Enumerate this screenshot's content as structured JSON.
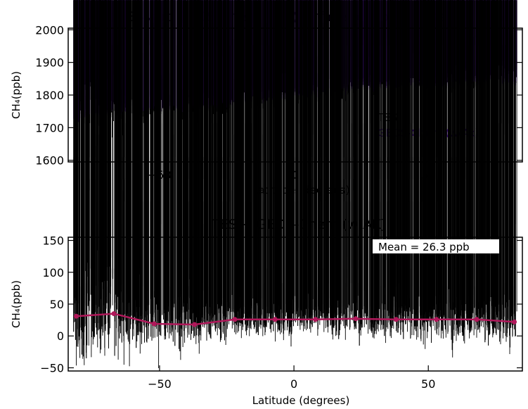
{
  "chart_data": [
    {
      "type": "scatter",
      "title": "TES and GEOS-Chem CH₄ (surface to Tropopause)",
      "xlabel": "Latitude (degrees)",
      "ylabel": "CH₄(ppb)",
      "xlim": [
        -84,
        85
      ],
      "ylim": [
        1595,
        2005
      ],
      "xticks": [
        -50,
        0,
        50
      ],
      "xtick_labels": [
        "−50",
        "0",
        "50"
      ],
      "yticks": [
        1600,
        1700,
        1800,
        1900,
        2000
      ],
      "ytick_labels": [
        "1600",
        "1700",
        "1800",
        "1900",
        "2000"
      ],
      "grid": false,
      "legend": "lower-right",
      "series": [
        {
          "name": "TES",
          "marker": "open-diamond",
          "color": "#000000",
          "lat": [
            -80,
            -70,
            -60,
            -50,
            -40,
            -30,
            -20,
            -10,
            0,
            10,
            20,
            30,
            40,
            50,
            60,
            70,
            80
          ],
          "center": [
            1765,
            1765,
            1762,
            1762,
            1768,
            1777,
            1788,
            1798,
            1808,
            1818,
            1828,
            1838,
            1845,
            1850,
            1855,
            1858,
            1860
          ],
          "half_width": [
            150,
            130,
            75,
            65,
            65,
            65,
            65,
            60,
            60,
            60,
            60,
            60,
            60,
            60,
            60,
            60,
            60
          ]
        },
        {
          "name": "GEOS-Chem (w/Ak)",
          "marker": "open-diamond",
          "color": "#7f1fff",
          "lat": [
            -80,
            -70,
            -60,
            -50,
            -40,
            -30,
            -20,
            -10,
            0,
            10,
            20,
            30,
            40,
            50,
            60,
            70,
            80
          ],
          "center": [
            1725,
            1740,
            1745,
            1750,
            1755,
            1762,
            1772,
            1782,
            1790,
            1802,
            1815,
            1820,
            1825,
            1828,
            1830,
            1832,
            1832
          ],
          "half_width": [
            20,
            20,
            18,
            18,
            18,
            18,
            18,
            18,
            20,
            20,
            25,
            22,
            20,
            20,
            20,
            20,
            20
          ]
        }
      ]
    },
    {
      "type": "scatter",
      "title": "TES − GEOS-Chem (w/AK)",
      "xlabel": "Latitude (degrees)",
      "ylabel": "CH₄(ppb)",
      "xlim": [
        -84,
        85
      ],
      "ylim": [
        -55,
        155
      ],
      "xticks": [
        -50,
        0,
        50
      ],
      "xtick_labels": [
        "−50",
        "0",
        "50"
      ],
      "yticks": [
        -50,
        0,
        50,
        100,
        150
      ],
      "ytick_labels": [
        "−50",
        "0",
        "50",
        "100",
        "150"
      ],
      "grid": false,
      "annotation": "Mean = 26.3 ppb",
      "series": [
        {
          "name": "TES − GEOS-Chem",
          "marker": "open-diamond",
          "color": "#000000",
          "lat": [
            -80,
            -70,
            -60,
            -50,
            -40,
            -30,
            -20,
            -10,
            0,
            10,
            20,
            30,
            40,
            50,
            60,
            70,
            80
          ],
          "center": [
            30,
            32,
            25,
            22,
            22,
            24,
            25,
            26,
            26,
            26,
            27,
            26,
            25,
            25,
            24,
            24,
            24
          ],
          "half_width": [
            125,
            115,
            75,
            62,
            58,
            48,
            42,
            40,
            40,
            40,
            42,
            45,
            48,
            52,
            55,
            58,
            60
          ]
        },
        {
          "name": "Mean",
          "marker": "dot-line",
          "color": "#b0185a",
          "x": [
            -81,
            -67,
            -52,
            -37,
            -22,
            -7,
            8,
            23,
            38,
            53,
            68,
            82
          ],
          "y": [
            31,
            35,
            19,
            18,
            26,
            26,
            26,
            27,
            26,
            26,
            26,
            22
          ]
        }
      ]
    }
  ]
}
